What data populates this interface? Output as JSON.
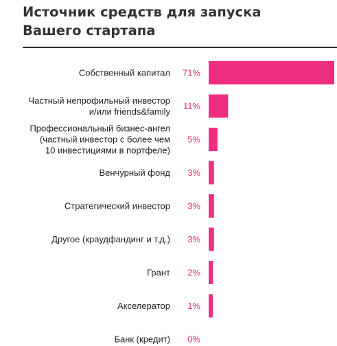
{
  "chart_data": {
    "type": "bar",
    "orientation": "horizontal",
    "title": [
      "Источник средств для запуска",
      "Вашего стартапа"
    ],
    "categories": [
      [
        "Собственный капитал"
      ],
      [
        "Частный непрофильный инвестор",
        "и/или friends&family"
      ],
      [
        "Профессиональный бизнес-ангел",
        "(частный инвестор с более чем",
        "10 инвестициями в портфеле)"
      ],
      [
        "Венчурный фонд"
      ],
      [
        "Стратегический инвестор"
      ],
      [
        "Другое (краудфандинг и т.д.)"
      ],
      [
        "Грант"
      ],
      [
        "Акселератор"
      ],
      [
        "Банк (кредит)"
      ]
    ],
    "values": [
      71,
      11,
      5,
      3,
      3,
      3,
      2,
      1,
      0
    ],
    "value_labels": [
      "71%",
      "11%",
      "5%",
      "3%",
      "3%",
      "3%",
      "2%",
      "1%",
      "0%"
    ],
    "unit": "%",
    "bar_color": "#ee2f7f",
    "value_color": "#e52e7d",
    "xlim": [
      0,
      71
    ],
    "grid": false,
    "legend": "none"
  }
}
